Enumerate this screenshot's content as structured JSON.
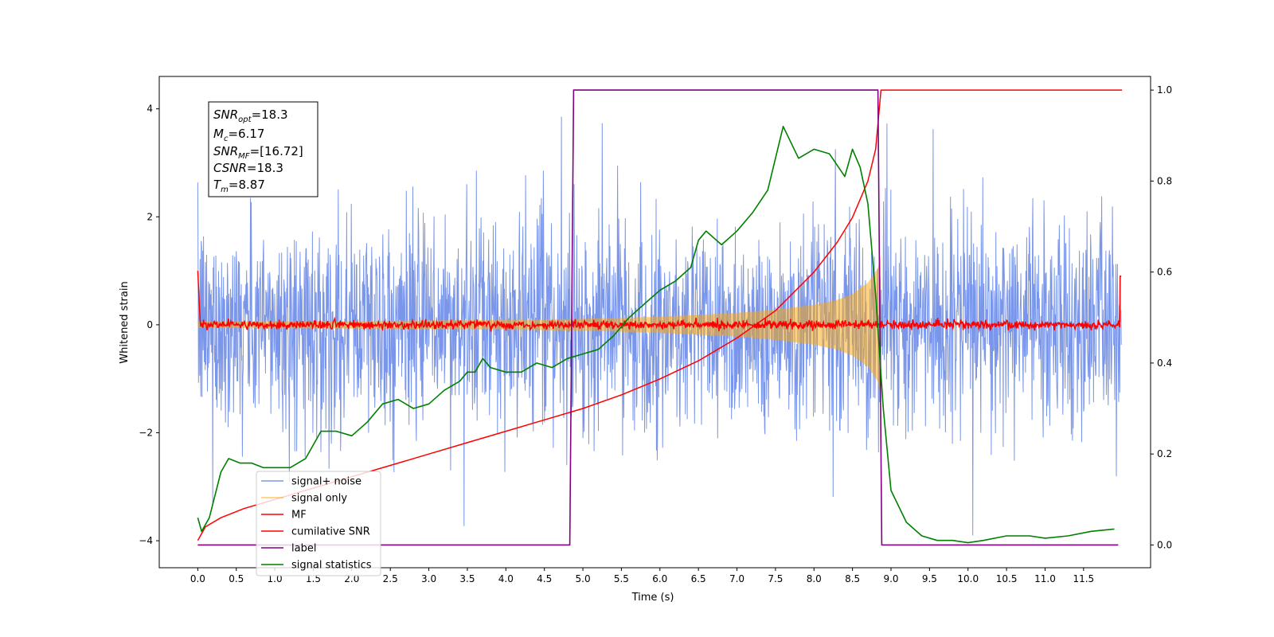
{
  "chart_data": {
    "type": "line",
    "xlabel": "Time (s)",
    "ylabel": "Whitened strain",
    "xlim": [
      -0.5,
      12.37
    ],
    "ylim_left": [
      -4.5,
      4.6
    ],
    "ylim_right": [
      -0.05,
      1.03
    ],
    "x_ticks": [
      "0.0",
      "0.5",
      "1.0",
      "1.5",
      "2.0",
      "2.5",
      "3.0",
      "3.5",
      "4.0",
      "4.5",
      "5.0",
      "5.5",
      "6.0",
      "6.5",
      "7.0",
      "7.5",
      "8.0",
      "8.5",
      "9.0",
      "9.5",
      "10.0",
      "10.5",
      "11.0",
      "11.5"
    ],
    "y_ticks_left": [
      "4",
      "2",
      "0",
      "−2",
      "−4"
    ],
    "y_ticks_right": [
      "1.0",
      "0.8",
      "0.6",
      "0.4",
      "0.2",
      "0.0"
    ],
    "grid": false,
    "legend_position": "lower-left",
    "info_box": {
      "snr_opt": {
        "main": "SNR",
        "sub": "opt",
        "value": "=18.3"
      },
      "mc": {
        "main": "M",
        "sub": "c",
        "value": "=6.17"
      },
      "snr_mf": {
        "main": "SNR",
        "sub": "MF",
        "value": "=[16.72]"
      },
      "csnr": {
        "main": "CSNR",
        "value": "=18.3"
      },
      "tm": {
        "main": "T",
        "sub": "m",
        "value": "=8.87"
      }
    },
    "series": [
      {
        "name": "signal+ noise",
        "color": "#4169e1",
        "axis": "left",
        "description_values": "noise band roughly −2.3 to 2.3 with spikes to ±4"
      },
      {
        "name": "signal only",
        "color": "#ffa500",
        "axis": "left",
        "envelope": {
          "x": [
            0.0,
            2.0,
            4.0,
            5.0,
            6.0,
            7.0,
            7.5,
            8.0,
            8.3,
            8.5,
            8.7,
            8.83,
            8.87
          ],
          "amp": [
            0.06,
            0.07,
            0.09,
            0.11,
            0.15,
            0.22,
            0.28,
            0.37,
            0.46,
            0.57,
            0.78,
            1.05,
            1.3
          ]
        }
      },
      {
        "name": "MF",
        "color": "#ff0000",
        "axis": "left",
        "description_values": "noisy trace near 0"
      },
      {
        "name": "cumilative SNR",
        "color": "#ff0000",
        "axis": "right",
        "x": [
          0.0,
          0.1,
          0.3,
          0.6,
          1.0,
          1.5,
          2.0,
          2.5,
          3.0,
          3.5,
          4.0,
          4.5,
          5.0,
          5.5,
          6.0,
          6.5,
          7.0,
          7.5,
          8.0,
          8.3,
          8.5,
          8.7,
          8.8,
          8.87,
          12.0
        ],
        "values": [
          0.01,
          0.04,
          0.06,
          0.08,
          0.1,
          0.125,
          0.15,
          0.175,
          0.2,
          0.225,
          0.25,
          0.275,
          0.3,
          0.33,
          0.365,
          0.405,
          0.455,
          0.515,
          0.6,
          0.665,
          0.72,
          0.8,
          0.87,
          1.0,
          1.0
        ]
      },
      {
        "name": "label",
        "color": "#800080",
        "axis": "right",
        "x": [
          0.0,
          4.83,
          4.88,
          8.83,
          8.88,
          11.95
        ],
        "values": [
          0.0,
          0.0,
          1.0,
          1.0,
          0.0,
          0.0
        ]
      },
      {
        "name": "signal statistics",
        "color": "#008000",
        "axis": "right",
        "x": [
          0.0,
          0.05,
          0.15,
          0.3,
          0.4,
          0.55,
          0.7,
          0.85,
          1.0,
          1.2,
          1.4,
          1.6,
          1.8,
          2.0,
          2.2,
          2.4,
          2.6,
          2.8,
          3.0,
          3.2,
          3.4,
          3.5,
          3.6,
          3.7,
          3.8,
          4.0,
          4.2,
          4.4,
          4.6,
          4.8,
          5.0,
          5.2,
          5.4,
          5.6,
          5.8,
          6.0,
          6.2,
          6.4,
          6.5,
          6.6,
          6.8,
          7.0,
          7.2,
          7.4,
          7.5,
          7.6,
          7.8,
          8.0,
          8.2,
          8.4,
          8.5,
          8.6,
          8.7,
          8.8,
          8.9,
          9.0,
          9.2,
          9.4,
          9.6,
          9.8,
          10.0,
          10.2,
          10.5,
          10.8,
          11.0,
          11.3,
          11.6,
          11.9
        ],
        "values": [
          0.06,
          0.03,
          0.06,
          0.16,
          0.19,
          0.18,
          0.18,
          0.17,
          0.17,
          0.17,
          0.19,
          0.25,
          0.25,
          0.24,
          0.27,
          0.31,
          0.32,
          0.3,
          0.31,
          0.34,
          0.36,
          0.38,
          0.38,
          0.41,
          0.39,
          0.38,
          0.38,
          0.4,
          0.39,
          0.41,
          0.42,
          0.43,
          0.46,
          0.5,
          0.53,
          0.56,
          0.58,
          0.61,
          0.67,
          0.69,
          0.66,
          0.69,
          0.73,
          0.78,
          0.85,
          0.92,
          0.85,
          0.87,
          0.86,
          0.81,
          0.87,
          0.83,
          0.75,
          0.55,
          0.3,
          0.12,
          0.05,
          0.02,
          0.01,
          0.01,
          0.005,
          0.01,
          0.02,
          0.02,
          0.015,
          0.02,
          0.03,
          0.035
        ]
      }
    ]
  }
}
